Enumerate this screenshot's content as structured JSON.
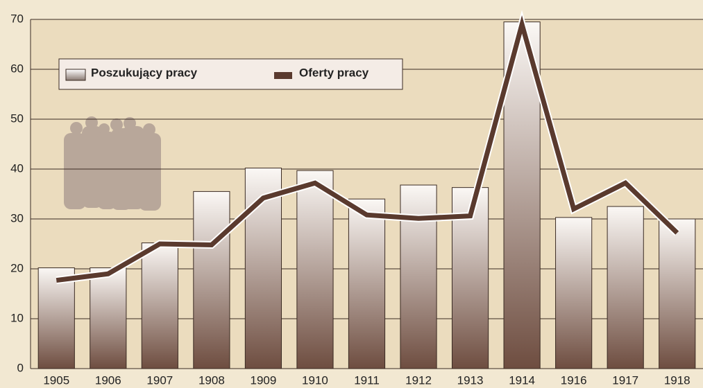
{
  "chart_data": {
    "type": "bar",
    "categories": [
      "1905",
      "1906",
      "1907",
      "1908",
      "1909",
      "1910",
      "1911",
      "1912",
      "1913",
      "1914",
      "1916",
      "1917",
      "1918"
    ],
    "series": [
      {
        "name": "Poszukujący pracy",
        "type": "bar",
        "color": "#6e4d40",
        "values": [
          20.2,
          20.2,
          25.2,
          35.5,
          40.2,
          39.7,
          34,
          36.8,
          36.3,
          69.5,
          30.3,
          32.5,
          30
        ]
      },
      {
        "name": "Oferty pracy",
        "type": "line",
        "color": "#5a3a2e",
        "values": [
          17.7,
          19,
          25,
          24.8,
          34.2,
          37.2,
          30.8,
          30.1,
          30.6,
          69,
          32,
          37.2,
          27.2
        ]
      }
    ],
    "ylim": [
      0,
      70
    ],
    "yticks": [
      0,
      10,
      20,
      30,
      40,
      50,
      60,
      70
    ],
    "grid": true,
    "legend": "top-left"
  }
}
